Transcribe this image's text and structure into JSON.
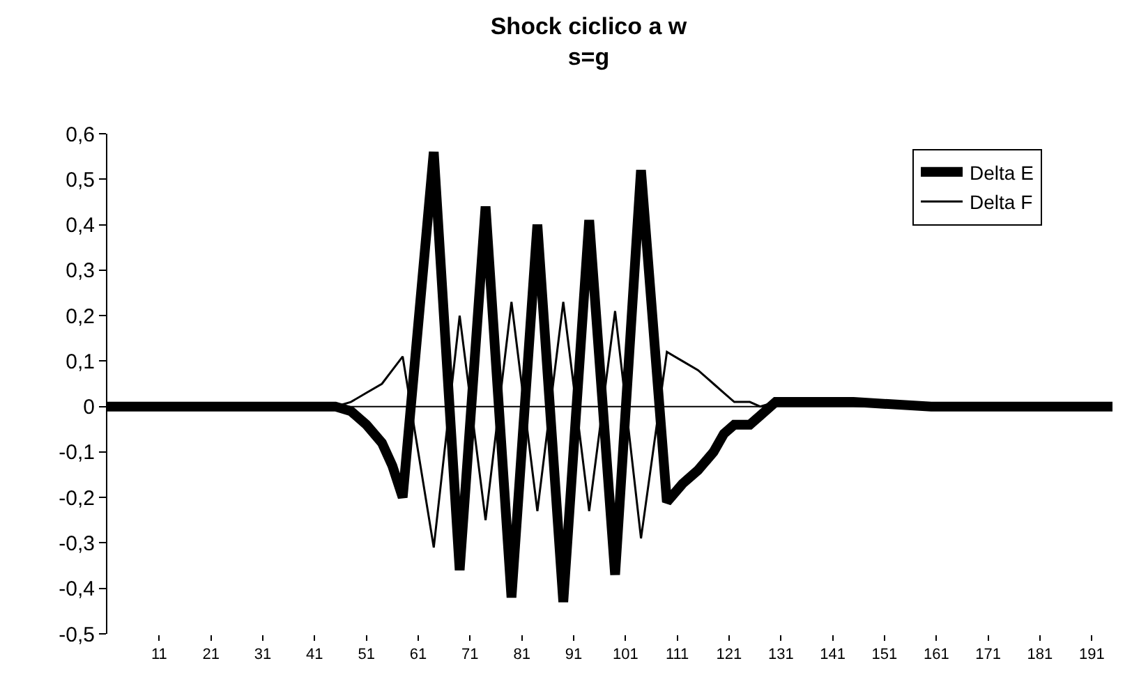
{
  "chart_data": {
    "type": "line",
    "title": "Shock ciclico a w\ns=g",
    "xlim": [
      1,
      195
    ],
    "xticks": [
      11,
      21,
      31,
      41,
      51,
      61,
      71,
      81,
      91,
      101,
      111,
      121,
      131,
      141,
      151,
      161,
      171,
      181,
      191
    ],
    "ylim": [
      -0.5,
      0.6
    ],
    "yticks": [
      {
        "value": 0.6,
        "label": "0,6"
      },
      {
        "value": 0.5,
        "label": "0,5"
      },
      {
        "value": 0.4,
        "label": "0,4"
      },
      {
        "value": 0.3,
        "label": "0,3"
      },
      {
        "value": 0.2,
        "label": "0,2"
      },
      {
        "value": 0.1,
        "label": "0,1"
      },
      0,
      {
        "value": -0.1,
        "label": "-0,1"
      },
      {
        "value": -0.2,
        "label": "-0,2"
      },
      {
        "value": -0.3,
        "label": "-0,3"
      },
      {
        "value": -0.4,
        "label": "-0,4"
      },
      {
        "value": -0.5,
        "label": "-0,5"
      }
    ],
    "grid": false,
    "ref_lines": [
      {
        "axis": "y",
        "value": 0,
        "color": "#000000",
        "line_style": "solid"
      }
    ],
    "legend": "top right",
    "marker": "none",
    "line_style": "solid",
    "series": [
      {
        "name": "Delta E",
        "color": "#000000",
        "x": [
          1,
          45,
          48,
          51,
          54,
          56,
          58,
          64,
          69,
          74,
          79,
          84,
          89,
          94,
          99,
          104,
          109,
          112,
          115,
          118,
          120,
          122,
          125,
          127,
          130,
          145,
          160,
          195
        ],
        "values": [
          0,
          0,
          -0.01,
          -0.04,
          -0.08,
          -0.13,
          -0.2,
          0.56,
          -0.36,
          0.44,
          -0.42,
          0.4,
          -0.43,
          0.41,
          -0.37,
          0.52,
          -0.21,
          -0.17,
          -0.14,
          -0.1,
          -0.06,
          -0.04,
          -0.04,
          -0.02,
          0.01,
          0.01,
          0,
          0
        ]
      },
      {
        "name": "Delta F",
        "color": "#000000",
        "x": [
          1,
          45,
          48,
          51,
          54,
          56,
          58,
          64,
          69,
          74,
          79,
          84,
          89,
          94,
          99,
          104,
          109,
          112,
          115,
          118,
          120,
          122,
          125,
          127,
          130,
          145,
          160,
          195
        ],
        "values": [
          0,
          0,
          0.01,
          0.03,
          0.05,
          0.08,
          0.11,
          -0.31,
          0.2,
          -0.25,
          0.23,
          -0.23,
          0.23,
          -0.23,
          0.21,
          -0.29,
          0.12,
          0.1,
          0.08,
          0.05,
          0.03,
          0.01,
          0.01,
          0,
          0.01,
          0.01,
          0,
          0
        ]
      }
    ]
  }
}
